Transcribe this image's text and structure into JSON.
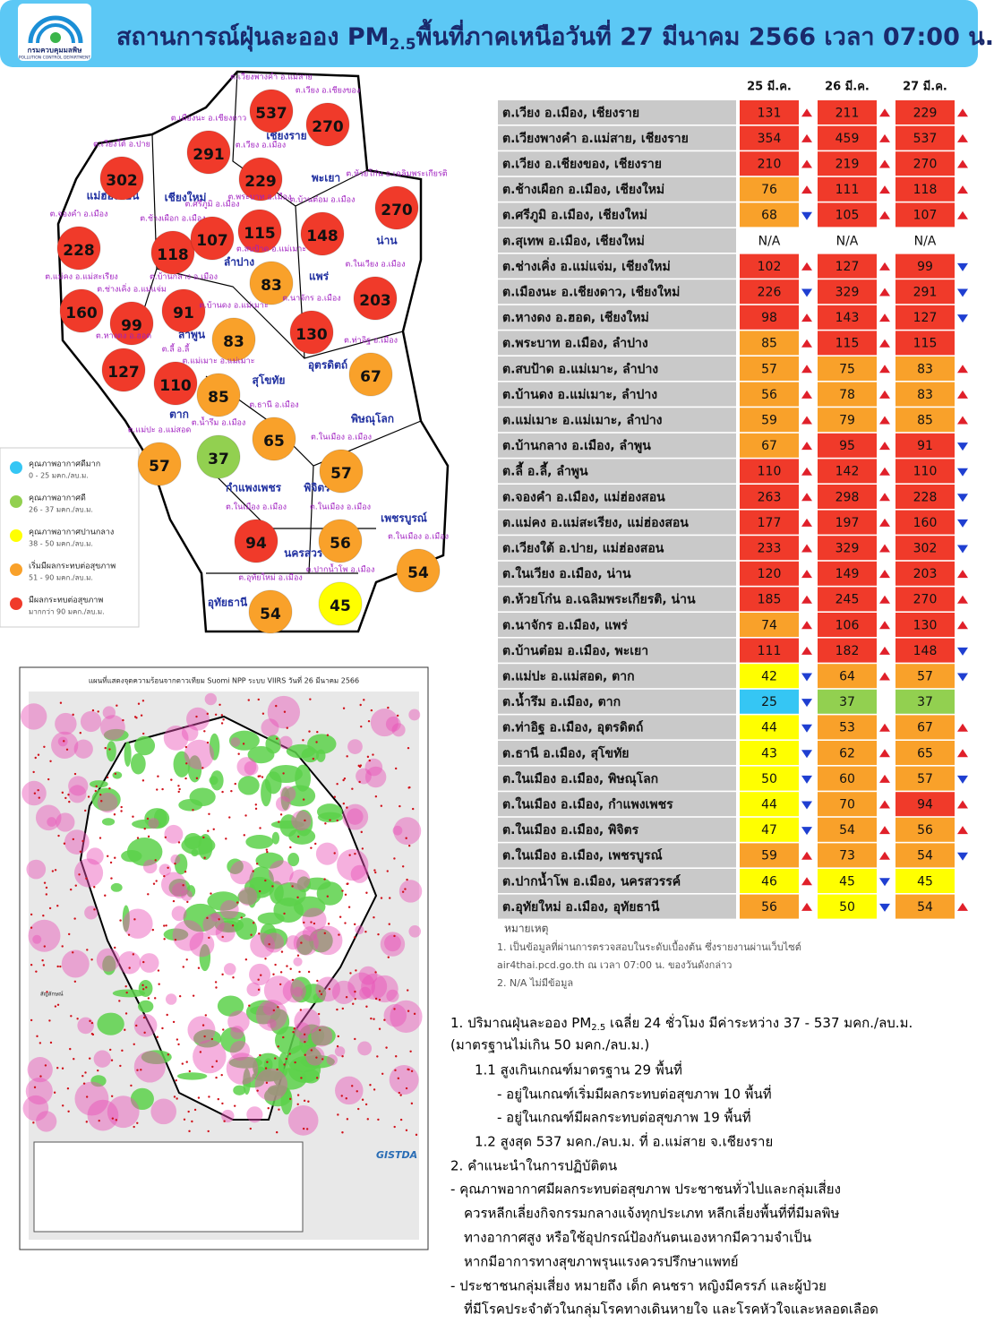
{
  "header": {
    "logo_th": "กรมควบคุมมลพิษ",
    "logo_en": "POLLUTION CONTROL DEPARTMENT",
    "title_pre": "สถานการณ์ฝุ่นละออง PM",
    "title_sub": "2.5",
    "title_post": "พื้นที่ภาคเหนือวันที่ 27 มีนาคม 2566 เวลา 07:00 น."
  },
  "legend": [
    {
      "label": "คุณภาพอากาศดีมาก",
      "range": "0 - 25 มคก./ลบ.ม.",
      "color": "#35c6f4",
      "max": 25
    },
    {
      "label": "คุณภาพอากาศดี",
      "range": "26 - 37 มคก./ลบ.ม.",
      "color": "#92d050",
      "max": 37
    },
    {
      "label": "คุณภาพอากาศปานกลาง",
      "range": "38 - 50 มคก./ลบ.ม.",
      "color": "#ffff00",
      "max": 50
    },
    {
      "label": "เริ่มมีผลกระทบต่อสุขภาพ",
      "range": "51 - 90 มคก./ลบ.ม.",
      "color": "#f9a12a",
      "max": 90
    },
    {
      "label": "มีผลกระทบต่อสุขภาพ",
      "range": "มากกว่า 90 มคก./ลบ.ม.",
      "color": "#f03a2a",
      "max": null
    }
  ],
  "trend_colors": {
    "up": "#e0202a",
    "down": "#1f3fd1"
  },
  "map": {
    "provinces": [
      "เชียงราย",
      "แม่ฮ่องสอน",
      "เชียงใหม่",
      "พะเยา",
      "น่าน",
      "ลำปาง",
      "แพร่",
      "ลำพูน",
      "อุตรดิตถ์",
      "สุโขทัย",
      "ตาก",
      "พิษณุโลก",
      "กำแพงเพชร",
      "พิจิตร",
      "เพชรบูรณ์",
      "นครสวรรค์",
      "อุทัยธานี"
    ],
    "stations": [
      {
        "label": "ต.เวียงพางคำ อ.แม่สาย",
        "value": 537
      },
      {
        "label": "ต.เวียง อ.เชียงของ",
        "value": 270
      },
      {
        "label": "ต.เมืองนะ อ.เชียงดาว",
        "value": 291
      },
      {
        "label": "ต.เวียงใต้ อ.ปาย",
        "value": 302
      },
      {
        "label": "ต.เวียง อ.เมือง",
        "value": 229
      },
      {
        "label": "ต.ห้วยโก๋น อ.เฉลิมพระเกียรติ",
        "value": 270
      },
      {
        "label": "ต.จองคำ อ.เมือง",
        "value": 228
      },
      {
        "label": "ต.ช้างเผือก อ.เมือง",
        "value": 118
      },
      {
        "label": "ต.ศรีภูมิ อ.เมือง",
        "value": 107
      },
      {
        "label": "ต.พระบาท อ.เมือง",
        "value": 115
      },
      {
        "label": "ต.บ้านต๋อม อ.เมือง",
        "value": 148
      },
      {
        "label": "ต.สบป้าด อ.แม่เมาะ",
        "value": 83
      },
      {
        "label": "ต.ในเวียง อ.เมือง",
        "value": 203
      },
      {
        "label": "ต.แม่คง อ.แม่สะเรียง",
        "value": 160
      },
      {
        "label": "ต.ช่างเคิ่ง อ.แม่แจ่ม",
        "value": 99
      },
      {
        "label": "ต.บ้านกลาง อ.เมือง",
        "value": 91
      },
      {
        "label": "ต.นาจักร อ.เมือง",
        "value": 130
      },
      {
        "label": "ต.บ้านดง อ.แม่เมาะ",
        "value": 83
      },
      {
        "label": "ต.หางดง อ.ฮอด",
        "value": 127
      },
      {
        "label": "ต.ลี้ อ.ลี้",
        "value": 110
      },
      {
        "label": "ต.แม่เมาะ อ.แม่เมาะ",
        "value": 85
      },
      {
        "label": "ต.ท่าอิฐ อ.เมือง",
        "value": 67
      },
      {
        "label": "ต.ธานี อ.เมือง",
        "value": 65
      },
      {
        "label": "ต.น้ำรึม อ.เมือง",
        "value": 37
      },
      {
        "label": "ต.แม่ปะ อ.แม่สอด",
        "value": 57
      },
      {
        "label": "ต.ในเมือง อ.เมือง",
        "value": 57
      },
      {
        "label": "ต.ในเมือง อ.เมือง",
        "value": 94
      },
      {
        "label": "ต.ในเมือง อ.เมือง",
        "value": 56
      },
      {
        "label": "ต.ในเมือง อ.เมือง",
        "value": 54
      },
      {
        "label": "ต.อุทัยใหม่ อ.เมือง",
        "value": 54
      },
      {
        "label": "ต.ปากน้ำโพ อ.เมือง",
        "value": 45
      }
    ]
  },
  "satellite": {
    "title": "แผนที่แสดงจุดความร้อนจากดาวเทียม Suomi NPP ระบบ VIIRS วันที่ 26 มีนาคม 2566",
    "legend_title": "สัญลักษณ์",
    "org": "GISTDA"
  },
  "table": {
    "columns": [
      "25 มี.ค.",
      "26 มี.ค.",
      "27 มี.ค."
    ],
    "rows": [
      {
        "name": "ต.เวียง อ.เมือง, เชียงราย",
        "values": [
          131,
          211,
          229
        ],
        "trends": [
          "up",
          "up",
          "up"
        ]
      },
      {
        "name": "ต.เวียงพางคำ อ.แม่สาย, เชียงราย",
        "values": [
          354,
          459,
          537
        ],
        "trends": [
          "up",
          "up",
          "up"
        ]
      },
      {
        "name": "ต.เวียง อ.เชียงของ, เชียงราย",
        "values": [
          210,
          219,
          270
        ],
        "trends": [
          "up",
          "up",
          "up"
        ]
      },
      {
        "name": "ต.ช้างเผือก อ.เมือง, เชียงใหม่",
        "values": [
          76,
          111,
          118
        ],
        "trends": [
          "up",
          "up",
          "up"
        ]
      },
      {
        "name": "ต.ศรีภูมิ อ.เมือง, เชียงใหม่",
        "values": [
          68,
          105,
          107
        ],
        "trends": [
          "down",
          "up",
          "up"
        ]
      },
      {
        "name": "ต.สุเทพ อ.เมือง, เชียงใหม่",
        "values": [
          "N/A",
          "N/A",
          "N/A"
        ],
        "trends": [
          null,
          null,
          null
        ]
      },
      {
        "name": "ต.ช่างเคิ่ง อ.แม่แจ่ม, เชียงใหม่",
        "values": [
          102,
          127,
          99
        ],
        "trends": [
          "up",
          "up",
          "down"
        ]
      },
      {
        "name": "ต.เมืองนะ อ.เชียงดาว, เชียงใหม่",
        "values": [
          226,
          329,
          291
        ],
        "trends": [
          "down",
          "up",
          "down"
        ]
      },
      {
        "name": "ต.หางดง อ.ฮอด, เชียงใหม่",
        "values": [
          98,
          143,
          127
        ],
        "trends": [
          "up",
          "up",
          "down"
        ]
      },
      {
        "name": "ต.พระบาท อ.เมือง, ลำปาง",
        "values": [
          85,
          115,
          115
        ],
        "trends": [
          "up",
          "up",
          null
        ]
      },
      {
        "name": "ต.สบป้าด อ.แม่เมาะ, ลำปาง",
        "values": [
          57,
          75,
          83
        ],
        "trends": [
          "up",
          "up",
          "up"
        ]
      },
      {
        "name": "ต.บ้านดง อ.แม่เมาะ, ลำปาง",
        "values": [
          56,
          78,
          83
        ],
        "trends": [
          "up",
          "up",
          "up"
        ]
      },
      {
        "name": "ต.แม่เมาะ อ.แม่เมาะ, ลำปาง",
        "values": [
          59,
          79,
          85
        ],
        "trends": [
          "up",
          "up",
          "up"
        ]
      },
      {
        "name": "ต.บ้านกลาง อ.เมือง, ลำพูน",
        "values": [
          67,
          95,
          91
        ],
        "trends": [
          "up",
          "up",
          "down"
        ]
      },
      {
        "name": "ต.ลี้ อ.ลี้, ลำพูน",
        "values": [
          110,
          142,
          110
        ],
        "trends": [
          "up",
          "up",
          "down"
        ]
      },
      {
        "name": "ต.จองคำ อ.เมือง, แม่ฮ่องสอน",
        "values": [
          263,
          298,
          228
        ],
        "trends": [
          "up",
          "up",
          "down"
        ]
      },
      {
        "name": "ต.แม่คง อ.แม่สะเรียง, แม่ฮ่องสอน",
        "values": [
          177,
          197,
          160
        ],
        "trends": [
          "up",
          "up",
          "down"
        ]
      },
      {
        "name": "ต.เวียงใต้ อ.ปาย, แม่ฮ่องสอน",
        "values": [
          233,
          329,
          302
        ],
        "trends": [
          "up",
          "up",
          "down"
        ]
      },
      {
        "name": "ต.ในเวียง อ.เมือง, น่าน",
        "values": [
          120,
          149,
          203
        ],
        "trends": [
          "up",
          "up",
          "up"
        ]
      },
      {
        "name": "ต.ห้วยโก๋น อ.เฉลิมพระเกียรติ, น่าน",
        "values": [
          185,
          245,
          270
        ],
        "trends": [
          "up",
          "up",
          "up"
        ]
      },
      {
        "name": "ต.นาจักร อ.เมือง, แพร่",
        "values": [
          74,
          106,
          130
        ],
        "trends": [
          "up",
          "up",
          "up"
        ]
      },
      {
        "name": "ต.บ้านต๋อม อ.เมือง, พะเยา",
        "values": [
          111,
          182,
          148
        ],
        "trends": [
          "up",
          "up",
          "down"
        ]
      },
      {
        "name": "ต.แม่ปะ อ.แม่สอด, ตาก",
        "values": [
          42,
          64,
          57
        ],
        "trends": [
          "down",
          "up",
          "down"
        ]
      },
      {
        "name": "ต.น้ำรึม อ.เมือง, ตาก",
        "values": [
          25,
          37,
          37
        ],
        "trends": [
          "down",
          null,
          null
        ]
      },
      {
        "name": "ต.ท่าอิฐ อ.เมือง, อุตรดิตถ์",
        "values": [
          44,
          53,
          67
        ],
        "trends": [
          "down",
          "up",
          "up"
        ]
      },
      {
        "name": "ต.ธานี อ.เมือง, สุโขทัย",
        "values": [
          43,
          62,
          65
        ],
        "trends": [
          "down",
          "up",
          "up"
        ]
      },
      {
        "name": "ต.ในเมือง อ.เมือง, พิษณุโลก",
        "values": [
          50,
          60,
          57
        ],
        "trends": [
          "down",
          "up",
          "down"
        ]
      },
      {
        "name": "ต.ในเมือง อ.เมือง, กำแพงเพชร",
        "values": [
          44,
          70,
          94
        ],
        "trends": [
          "down",
          "up",
          "up"
        ]
      },
      {
        "name": "ต.ในเมือง อ.เมือง, พิจิตร",
        "values": [
          47,
          54,
          56
        ],
        "trends": [
          "down",
          "up",
          "up"
        ]
      },
      {
        "name": "ต.ในเมือง อ.เมือง, เพชรบูรณ์",
        "values": [
          59,
          73,
          54
        ],
        "trends": [
          "up",
          "up",
          "down"
        ]
      },
      {
        "name": "ต.ปากน้ำโพ อ.เมือง, นครสวรรค์",
        "values": [
          46,
          45,
          45
        ],
        "trends": [
          "up",
          "down",
          null
        ]
      },
      {
        "name": "ต.อุทัยใหม่ อ.เมือง, อุทัยธานี",
        "values": [
          56,
          50,
          54
        ],
        "trends": [
          "up",
          "down",
          "up"
        ]
      }
    ]
  },
  "notes": {
    "title": "หมายเหตุ",
    "lines": [
      "1. เป็นข้อมูลที่ผ่านการตรวจสอบในระดับเบื้องต้น ซึ่งรายงานผ่านเว็บไซต์",
      "air4thai.pcd.go.th ณ เวลา 07:00 น. ของวันดังกล่าว",
      "2. N/A ไม่มีข้อมูล"
    ]
  },
  "summary": {
    "first": {
      "pre": "1. ปริมาณฝุ่นละออง PM",
      "sub": "2.5",
      "post": " เฉลี่ย 24 ชั่วโมง มีค่าระหว่าง 37 - 537 มคก./ลบ.ม."
    },
    "lines": [
      "(มาตรฐานไม่เกิน 50 มคก./ลบ.ม.)",
      "1.1 สูงเกินเกณฑ์มาตรฐาน 29 พื้นที่",
      "- อยู่ในเกณฑ์เริ่มมีผลกระทบต่อสุขภาพ 10 พื้นที่",
      "- อยู่ในเกณฑ์มีผลกระทบต่อสุขภาพ 19 พื้นที่",
      "1.2 สูงสุด 537 มคก./ลบ.ม. ที่ อ.แม่สาย จ.เชียงราย",
      "2. คำแนะนำในการปฏิบัติตน",
      "- คุณภาพอากาศมีผลกระทบต่อสุขภาพ ประชาชนทั่วไปและกลุ่มเสี่ยง",
      "ควรหลีกเลี่ยงกิจกรรมกลางแจ้งทุกประเภท หลีกเลี่ยงพื้นที่ที่มีมลพิษ",
      "ทางอากาศสูง หรือใช้อุปกรณ์ป้องกันตนเองหากมีความจำเป็น",
      "หากมีอาการทางสุขภาพรุนแรงควรปรึกษาแพทย์",
      "- ประชาชนกลุ่มเสี่ยง หมายถึง เด็ก คนชรา หญิงมีครรภ์ และผู้ป่วย",
      "ที่มีโรคประจำตัวในกลุ่มโรคทางเดินหายใจ และโรคหัวใจและหลอดเลือด"
    ]
  }
}
